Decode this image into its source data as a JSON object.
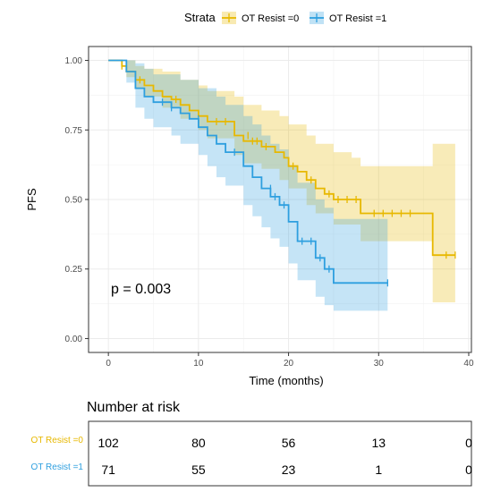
{
  "chart_data": {
    "type": "line",
    "ylabel": "PFS",
    "xlabel": "Time (months)",
    "xlim": [
      -2.2,
      40.3
    ],
    "ylim": [
      -0.05,
      1.05
    ],
    "x_ticks": [
      0,
      10,
      20,
      30,
      40
    ],
    "y_ticks": [
      0,
      0.25,
      0.5,
      0.75,
      1.0
    ],
    "y_tick_labels": [
      "0.00",
      "0.25",
      "0.50",
      "0.75",
      "1.00"
    ],
    "grid": true,
    "legend": {
      "title": "Strata",
      "placement": "top",
      "entries": [
        "OT Resist =0",
        "OT Resist =1"
      ]
    },
    "annotation": "p = 0.003",
    "series": [
      {
        "name": "OT Resist =0",
        "color": "#E7B800",
        "steps": [
          [
            0,
            1.0
          ],
          [
            1.5,
            1.0
          ],
          [
            1.5,
            0.98
          ],
          [
            2,
            0.98
          ],
          [
            2,
            0.96
          ],
          [
            3,
            0.96
          ],
          [
            3,
            0.93
          ],
          [
            4,
            0.93
          ],
          [
            4,
            0.91
          ],
          [
            5,
            0.91
          ],
          [
            5,
            0.89
          ],
          [
            6,
            0.89
          ],
          [
            6,
            0.87
          ],
          [
            7,
            0.87
          ],
          [
            7,
            0.86
          ],
          [
            8,
            0.86
          ],
          [
            8,
            0.84
          ],
          [
            9,
            0.84
          ],
          [
            9,
            0.82
          ],
          [
            10,
            0.82
          ],
          [
            10,
            0.8
          ],
          [
            11,
            0.8
          ],
          [
            11,
            0.78
          ],
          [
            14,
            0.78
          ],
          [
            14,
            0.73
          ],
          [
            15,
            0.73
          ],
          [
            15,
            0.71
          ],
          [
            17,
            0.71
          ],
          [
            17,
            0.69
          ],
          [
            18.5,
            0.69
          ],
          [
            18.5,
            0.67
          ],
          [
            19.5,
            0.67
          ],
          [
            19.5,
            0.65
          ],
          [
            20,
            0.65
          ],
          [
            20,
            0.62
          ],
          [
            21,
            0.62
          ],
          [
            21,
            0.6
          ],
          [
            22,
            0.6
          ],
          [
            22,
            0.57
          ],
          [
            23,
            0.57
          ],
          [
            23,
            0.54
          ],
          [
            24,
            0.54
          ],
          [
            24,
            0.52
          ],
          [
            25,
            0.52
          ],
          [
            25,
            0.5
          ],
          [
            28,
            0.5
          ],
          [
            28,
            0.45
          ],
          [
            36,
            0.45
          ],
          [
            36,
            0.3
          ],
          [
            38.5,
            0.3
          ]
        ],
        "ci_upper": [
          [
            0,
            1.0
          ],
          [
            2,
            1.0
          ],
          [
            3,
            0.98
          ],
          [
            4,
            0.97
          ],
          [
            6,
            0.96
          ],
          [
            8,
            0.93
          ],
          [
            10,
            0.91
          ],
          [
            11,
            0.89
          ],
          [
            14,
            0.87
          ],
          [
            15,
            0.84
          ],
          [
            17,
            0.82
          ],
          [
            19,
            0.8
          ],
          [
            20,
            0.77
          ],
          [
            22,
            0.73
          ],
          [
            23,
            0.7
          ],
          [
            25,
            0.67
          ],
          [
            27,
            0.65
          ],
          [
            28,
            0.62
          ],
          [
            36,
            0.62
          ],
          [
            36,
            0.7
          ],
          [
            38.5,
            0.7
          ]
        ],
        "ci_lower": [
          [
            0,
            1.0
          ],
          [
            2,
            0.94
          ],
          [
            3,
            0.9
          ],
          [
            4,
            0.87
          ],
          [
            6,
            0.83
          ],
          [
            8,
            0.79
          ],
          [
            10,
            0.75
          ],
          [
            11,
            0.72
          ],
          [
            14,
            0.66
          ],
          [
            15,
            0.63
          ],
          [
            17,
            0.61
          ],
          [
            19,
            0.57
          ],
          [
            20,
            0.54
          ],
          [
            22,
            0.48
          ],
          [
            23,
            0.45
          ],
          [
            25,
            0.41
          ],
          [
            28,
            0.35
          ],
          [
            36,
            0.35
          ],
          [
            36,
            0.13
          ],
          [
            38.5,
            0.13
          ]
        ],
        "censor": [
          [
            1.5,
            0.98
          ],
          [
            3.5,
            0.93
          ],
          [
            7.5,
            0.86
          ],
          [
            12,
            0.78
          ],
          [
            13,
            0.78
          ],
          [
            15.5,
            0.73
          ],
          [
            16,
            0.71
          ],
          [
            16.5,
            0.71
          ],
          [
            17.5,
            0.69
          ],
          [
            20.5,
            0.62
          ],
          [
            22.5,
            0.57
          ],
          [
            24.5,
            0.52
          ],
          [
            25.5,
            0.5
          ],
          [
            26.5,
            0.5
          ],
          [
            27.5,
            0.5
          ],
          [
            29.5,
            0.45
          ],
          [
            30.5,
            0.45
          ],
          [
            31.5,
            0.45
          ],
          [
            32.5,
            0.45
          ],
          [
            33.5,
            0.45
          ],
          [
            37.5,
            0.3
          ],
          [
            38.5,
            0.3
          ]
        ]
      },
      {
        "name": "OT Resist =1",
        "color": "#2E9FDF",
        "steps": [
          [
            0,
            1.0
          ],
          [
            2,
            1.0
          ],
          [
            2,
            0.96
          ],
          [
            3,
            0.96
          ],
          [
            3,
            0.9
          ],
          [
            4,
            0.9
          ],
          [
            4,
            0.87
          ],
          [
            5,
            0.87
          ],
          [
            5,
            0.85
          ],
          [
            7,
            0.85
          ],
          [
            7,
            0.83
          ],
          [
            8,
            0.83
          ],
          [
            8,
            0.81
          ],
          [
            9,
            0.81
          ],
          [
            9,
            0.79
          ],
          [
            10,
            0.79
          ],
          [
            10,
            0.76
          ],
          [
            11,
            0.76
          ],
          [
            11,
            0.73
          ],
          [
            12,
            0.73
          ],
          [
            12,
            0.7
          ],
          [
            13,
            0.7
          ],
          [
            13,
            0.67
          ],
          [
            15,
            0.67
          ],
          [
            15,
            0.62
          ],
          [
            16,
            0.62
          ],
          [
            16,
            0.58
          ],
          [
            17,
            0.58
          ],
          [
            17,
            0.54
          ],
          [
            18,
            0.54
          ],
          [
            18,
            0.51
          ],
          [
            19,
            0.51
          ],
          [
            19,
            0.48
          ],
          [
            20,
            0.48
          ],
          [
            20,
            0.42
          ],
          [
            21,
            0.42
          ],
          [
            21,
            0.35
          ],
          [
            23,
            0.35
          ],
          [
            23,
            0.29
          ],
          [
            24,
            0.29
          ],
          [
            24,
            0.25
          ],
          [
            25,
            0.25
          ],
          [
            25,
            0.2
          ],
          [
            31,
            0.2
          ]
        ],
        "ci_upper": [
          [
            0,
            1.0
          ],
          [
            2,
            1.0
          ],
          [
            3,
            0.99
          ],
          [
            4,
            0.97
          ],
          [
            5,
            0.95
          ],
          [
            8,
            0.93
          ],
          [
            10,
            0.9
          ],
          [
            12,
            0.87
          ],
          [
            13,
            0.84
          ],
          [
            15,
            0.8
          ],
          [
            16,
            0.77
          ],
          [
            17,
            0.73
          ],
          [
            18,
            0.7
          ],
          [
            19,
            0.68
          ],
          [
            20,
            0.62
          ],
          [
            21,
            0.56
          ],
          [
            23,
            0.5
          ],
          [
            24,
            0.47
          ],
          [
            25,
            0.43
          ],
          [
            31,
            0.43
          ]
        ],
        "ci_lower": [
          [
            0,
            1.0
          ],
          [
            2,
            0.92
          ],
          [
            3,
            0.83
          ],
          [
            4,
            0.79
          ],
          [
            5,
            0.76
          ],
          [
            7,
            0.73
          ],
          [
            8,
            0.7
          ],
          [
            10,
            0.66
          ],
          [
            11,
            0.62
          ],
          [
            12,
            0.58
          ],
          [
            13,
            0.55
          ],
          [
            15,
            0.48
          ],
          [
            16,
            0.44
          ],
          [
            17,
            0.4
          ],
          [
            18,
            0.36
          ],
          [
            19,
            0.33
          ],
          [
            20,
            0.27
          ],
          [
            21,
            0.21
          ],
          [
            23,
            0.15
          ],
          [
            24,
            0.12
          ],
          [
            25,
            0.1
          ],
          [
            31,
            0.1
          ]
        ],
        "censor": [
          [
            6,
            0.85
          ],
          [
            7,
            0.83
          ],
          [
            10,
            0.79
          ],
          [
            14,
            0.67
          ],
          [
            18,
            0.54
          ],
          [
            18.5,
            0.51
          ],
          [
            19.5,
            0.48
          ],
          [
            21.5,
            0.35
          ],
          [
            22.5,
            0.35
          ],
          [
            23.5,
            0.29
          ],
          [
            24.5,
            0.25
          ],
          [
            31,
            0.2
          ]
        ]
      }
    ],
    "risk_table": {
      "title": "Number at risk",
      "times": [
        0,
        10,
        20,
        30,
        40
      ],
      "rows": [
        {
          "label": "OT Resist =0",
          "color": "#E7B800",
          "values": [
            "102",
            "80",
            "56",
            "13",
            "0"
          ]
        },
        {
          "label": "OT Resist =1",
          "color": "#2E9FDF",
          "values": [
            "71",
            "55",
            "23",
            "1",
            "0"
          ]
        }
      ]
    }
  }
}
